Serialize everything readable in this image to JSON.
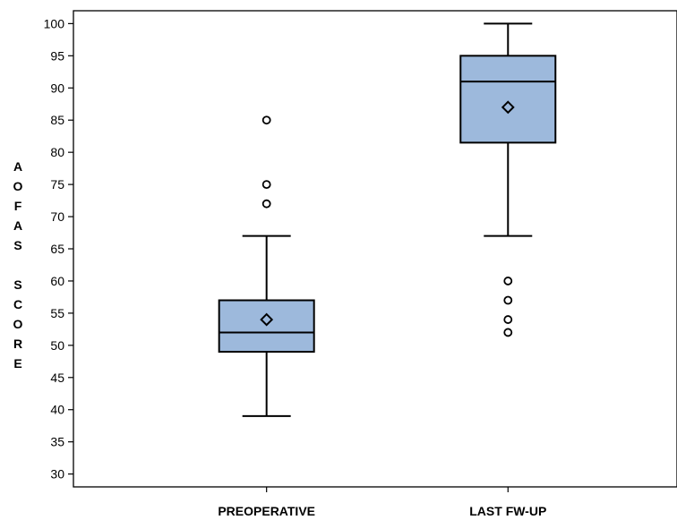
{
  "chart_data": {
    "type": "box",
    "ylabel": "AOFAS SCORE",
    "xlabel": "",
    "title": "",
    "ylim": [
      28,
      102
    ],
    "yticks": [
      30,
      35,
      40,
      45,
      50,
      55,
      60,
      65,
      70,
      75,
      80,
      85,
      90,
      95,
      100
    ],
    "categories": [
      "PREOPERATIVE",
      "LAST FW-UP"
    ],
    "box_color": "#9db9dc",
    "boxes": [
      {
        "category": "PREOPERATIVE",
        "whisker_low": 39,
        "q1": 49,
        "median": 52,
        "q3": 57,
        "whisker_high": 67,
        "mean": 54,
        "outliers": [
          72,
          75,
          85
        ]
      },
      {
        "category": "LAST FW-UP",
        "whisker_low": 67,
        "q1": 81.5,
        "median": 91,
        "q3": 95,
        "whisker_high": 100,
        "mean": 87,
        "outliers": [
          52,
          54,
          57,
          60
        ]
      }
    ],
    "grid": false
  }
}
